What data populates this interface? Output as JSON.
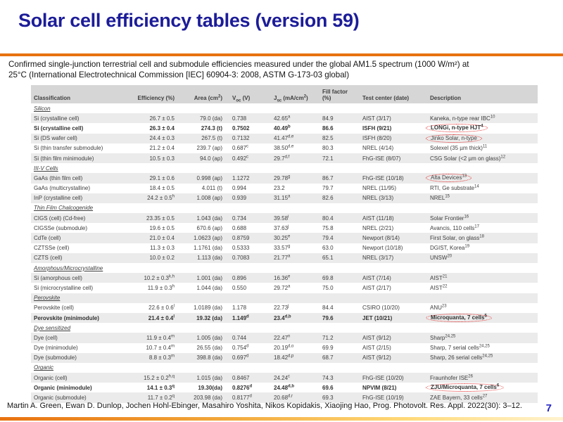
{
  "slide": {
    "title": "Solar cell efficiency tables (version 59)",
    "subtitle_line1": "Confirmed single-junction terrestrial cell and submodule efficiencies measured under the global AM1.5 spectrum (1000 W/m²) at",
    "subtitle_line2": "25°C (International Electrotechnical Commission [IEC] 60904-3: 2008, ASTM G-173-03 global)",
    "footer_citation": "Martin A. Green, Ewan D. Dunlop, Jochen Hohl-Ebinger, Masahiro Yoshita, Nikos Kopidakis, Xiaojing Hao, Prog. Photovolt. Res. Appl. 2022(30): 3–12.",
    "page_number": "7"
  },
  "colors": {
    "title": "#1c1c99",
    "accent_rule": "#e87210",
    "highlight": "#e01818",
    "page_number": "#2525c8"
  },
  "table": {
    "headers": [
      "Classification",
      "Efficiency (%)",
      "Area (cm^{2})",
      "V_{oc} (V)",
      "J_{sc} (mA/cm^{2})",
      "Fill factor (%)",
      "Test center (date)",
      "Description"
    ],
    "sections": [
      {
        "name": "Silicon",
        "rows": [
          {
            "cells": [
              "Si (crystalline cell)",
              "26.7 ± 0.5",
              "79.0 (da)",
              "0.738",
              "42.65^{a}",
              "84.9",
              "AIST (3/17)",
              "Kaneka, n-type rear IBC^{10}"
            ],
            "bold": false,
            "circled": false
          },
          {
            "cells": [
              "Si (crystalline cell)",
              "26.3 ± 0.4",
              "274.3 (t)",
              "0.7502",
              "40.49^{b}",
              "86.6",
              "ISFH (9/21)",
              "LONGi, n-type HJT^{4}"
            ],
            "bold": true,
            "circled": true
          },
          {
            "cells": [
              "Si (DS wafer cell)",
              "24.4 ± 0.3",
              "267.5 (t)",
              "0.7132",
              "41.47^{d,e}",
              "82.5",
              "ISFH (8/20)",
              "Jinko Solar, n-type"
            ],
            "bold": false,
            "circled": true
          },
          {
            "cells": [
              "Si (thin transfer submodule)",
              "21.2 ± 0.4",
              "239.7 (ap)",
              "0.687^{c}",
              "38.50^{d,e}",
              "80.3",
              "NREL (4/14)",
              "Solexel (35 µm thick)^{11}"
            ],
            "bold": false,
            "circled": false
          },
          {
            "cells": [
              "Si (thin film minimodule)",
              "10.5 ± 0.3",
              "94.0 (ap)",
              "0.492^{c}",
              "29.7^{d,f}",
              "72.1",
              "FhG-ISE (8/07)",
              "CSG Solar (<2 µm on glass)^{12}"
            ],
            "bold": false,
            "circled": false
          }
        ]
      },
      {
        "name": "III-V Cells",
        "rows": [
          {
            "cells": [
              "GaAs (thin film cell)",
              "29.1 ± 0.6",
              "0.998 (ap)",
              "1.1272",
              "29.78^{g}",
              "86.7",
              "FhG-ISE (10/18)",
              "Alta Devices^{13}"
            ],
            "bold": false,
            "circled": true
          },
          {
            "cells": [
              "GaAs (multicrystalline)",
              "18.4 ± 0.5",
              "4.011 (t)",
              "0.994",
              "23.2",
              "79.7",
              "NREL (11/95)",
              "RTI, Ge substrate^{14}"
            ],
            "bold": false,
            "circled": false
          },
          {
            "cells": [
              "InP (crystalline cell)",
              "24.2 ± 0.5^{h}",
              "1.008 (ap)",
              "0.939",
              "31.15^{a}",
              "82.6",
              "NREL (3/13)",
              "NREL^{15}"
            ],
            "bold": false,
            "circled": false
          }
        ]
      },
      {
        "name": "Thin Film Chalcogenide",
        "rows": [
          {
            "cells": [
              "CIGS (cell) (Cd-free)",
              "23.35 ± 0.5",
              "1.043 (da)",
              "0.734",
              "39.58^{i}",
              "80.4",
              "AIST (11/18)",
              "Solar Frontier^{16}"
            ],
            "bold": false,
            "circled": false
          },
          {
            "cells": [
              "CIGSSe (submodule)",
              "19.6 ± 0.5",
              "670.6 (ap)",
              "0.688",
              "37.63^{j}",
              "75.8",
              "NREL (2/21)",
              "Avancis, 110 cells^{17}"
            ],
            "bold": false,
            "circled": false
          },
          {
            "cells": [
              "CdTe (cell)",
              "21.0 ± 0.4",
              "1.0623 (ap)",
              "0.8759",
              "30.25^{e}",
              "79.4",
              "Newport (8/14)",
              "First Solar, on glass^{18}"
            ],
            "bold": false,
            "circled": false
          },
          {
            "cells": [
              "CZTSSe (cell)",
              "11.3 ± 0.3",
              "1.1761 (da)",
              "0.5333",
              "33.57^{g}",
              "63.0",
              "Newport (10/18)",
              "DGIST, Korea^{19}"
            ],
            "bold": false,
            "circled": false
          },
          {
            "cells": [
              "CZTS (cell)",
              "10.0 ± 0.2",
              "1.113 (da)",
              "0.7083",
              "21.77^{a}",
              "65.1",
              "NREL (3/17)",
              "UNSW^{20}"
            ],
            "bold": false,
            "circled": false
          }
        ]
      },
      {
        "name": "Amorphous/Microcrystalline",
        "rows": [
          {
            "cells": [
              "Si (amorphous cell)",
              "10.2 ± 0.3^{k,h}",
              "1.001 (da)",
              "0.896",
              "16.36^{e}",
              "69.8",
              "AIST (7/14)",
              "AIST^{21}"
            ],
            "bold": false,
            "circled": false
          },
          {
            "cells": [
              "Si (microcrystalline cell)",
              "11.9 ± 0.3^{h}",
              "1.044 (da)",
              "0.550",
              "29.72^{a}",
              "75.0",
              "AIST (2/17)",
              "AIST^{22}"
            ],
            "bold": false,
            "circled": false
          }
        ]
      },
      {
        "name": "Perovskite",
        "rows": [
          {
            "cells": [
              "Perovskite (cell)",
              "22.6 ± 0.6^{l}",
              "1.0189 (da)",
              "1.178",
              "22.73^{j}",
              "84.4",
              "CSIRO (10/20)",
              "ANU^{23}"
            ],
            "bold": false,
            "circled": false
          },
          {
            "cells": [
              "Perovskite (minimodule)",
              "21.4 ± 0.4^{l}",
              "19.32 (da)",
              "1.149^{d}",
              "23.4^{d,b}",
              "79.6",
              "JET (10/21)",
              "Microquanta, 7 cells^{5}"
            ],
            "bold": true,
            "circled": true
          }
        ]
      },
      {
        "name": "Dye sensitized",
        "rows": [
          {
            "cells": [
              "Dye (cell)",
              "11.9 ± 0.4^{m}",
              "1.005 (da)",
              "0.744",
              "22.47^{n}",
              "71.2",
              "AIST (9/12)",
              "Sharp^{24,25}"
            ],
            "bold": false,
            "circled": false
          },
          {
            "cells": [
              "Dye (minimodule)",
              "10.7 ± 0.4^{m}",
              "26.55 (da)",
              "0.754^{d}",
              "20.19^{d,o}",
              "69.9",
              "AIST (2/15)",
              "Sharp, 7 serial cells^{24,25}"
            ],
            "bold": false,
            "circled": false
          },
          {
            "cells": [
              "Dye (submodule)",
              "8.8 ± 0.3^{m}",
              "398.8 (da)",
              "0.697^{d}",
              "18.42^{d,p}",
              "68.7",
              "AIST (9/12)",
              "Sharp, 26 serial cells^{24,25}"
            ],
            "bold": false,
            "circled": false
          }
        ]
      },
      {
        "name": "Organic",
        "rows": [
          {
            "cells": [
              "Organic (cell)",
              "15.2 ± 0.2^{h,q}",
              "1.015 (da)",
              "0.8467",
              "24.24^{c}",
              "74.3",
              "FhG-ISE (10/20)",
              "Fraunhofer ISE^{26}"
            ],
            "bold": false,
            "circled": false
          },
          {
            "cells": [
              "Organic (minimodule)",
              "14.1 ± 0.3^{q}",
              "19.30(da)",
              "0.8276^{d}",
              "24.48^{d,b}",
              "69.6",
              "NPVIM (8/21)",
              "ZJU/Microquanta, 7 cells^{6}"
            ],
            "bold": true,
            "circled": true
          },
          {
            "cells": [
              "Organic (submodule)",
              "11.7 ± 0.2^{q}",
              "203.98 (da)",
              "0.8177^{d}",
              "20.68^{d,r}",
              "69.3",
              "FhG-ISE (10/19)",
              "ZAE Bayern, 33 cells^{27}"
            ],
            "bold": false,
            "circled": false
          }
        ]
      }
    ]
  }
}
